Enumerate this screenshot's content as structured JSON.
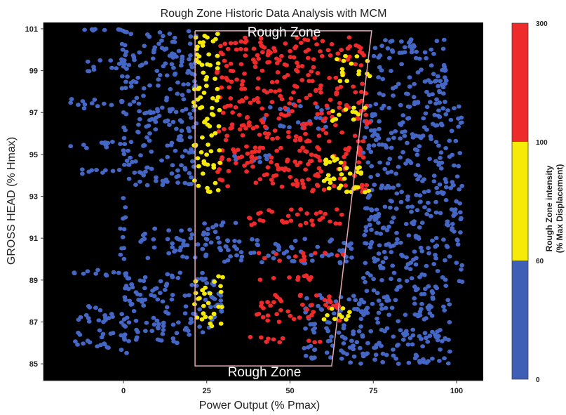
{
  "chart_data": {
    "type": "scatter",
    "title": "Rough Zone Historic Data Analysis with MCM",
    "xlabel": "Power Output (% Pmax)",
    "ylabel": "GROSS HEAD (% Hmax)",
    "xlim": [
      -24,
      108
    ],
    "ylim": [
      84.2,
      101.3
    ],
    "x_ticks": [
      0,
      25,
      50,
      75,
      100
    ],
    "y_ticks": [
      85,
      87,
      89,
      91,
      93,
      95,
      97,
      99,
      101
    ],
    "plot_background": "#000000",
    "grid": false,
    "legend": "none",
    "annotations": [
      {
        "text": "Rough Zone",
        "position": "top"
      },
      {
        "text": "Rough Zone",
        "position": "bottom"
      }
    ],
    "rough_zone_boundary": {
      "color": "#e7a8b4",
      "points": [
        [
          21.5,
          100.9
        ],
        [
          74.5,
          100.9
        ],
        [
          62.5,
          84.9
        ],
        [
          21.5,
          84.9
        ]
      ]
    },
    "colorbar": {
      "label_line1": "Rough Zone intensity",
      "label_line2": "(% Max Displacement)",
      "bands": [
        {
          "from": 0,
          "to": 60,
          "color": "#3f5fb6"
        },
        {
          "from": 60,
          "to": 100,
          "color": "#f6ea07"
        },
        {
          "from": 100,
          "to": 300,
          "color": "#ee2a2a"
        }
      ],
      "tick_labels": [
        "0",
        "60",
        "100",
        "300"
      ]
    },
    "series": [
      {
        "color": "#4466c4",
        "clusters": [
          {
            "x": [
              -16,
              -2
            ],
            "y": [
              85.6,
              86.6
            ]
          },
          {
            "x": [
              -18,
              0
            ],
            "y": [
              87.0,
              87.8
            ]
          },
          {
            "x": [
              -15,
              0
            ],
            "y": [
              89.1,
              89.5
            ]
          },
          {
            "x": [
              -14,
              5
            ],
            "y": [
              94.0,
              94.3
            ]
          },
          {
            "x": [
              -16,
              0
            ],
            "y": [
              95.3,
              95.6
            ]
          },
          {
            "x": [
              -18,
              0
            ],
            "y": [
              97.2,
              97.7
            ]
          },
          {
            "x": [
              -12,
              2
            ],
            "y": [
              98.9,
              99.5
            ]
          },
          {
            "x": [
              -14,
              4
            ],
            "y": [
              100.9,
              101.0
            ]
          },
          {
            "x": [
              -1,
              1
            ],
            "y": [
              85.0,
              101.0
            ]
          },
          {
            "x": [
              0,
              22
            ],
            "y": [
              93.5,
              100.9
            ]
          },
          {
            "x": [
              0,
              22
            ],
            "y": [
              86.0,
              89.5
            ]
          },
          {
            "x": [
              5,
              26
            ],
            "y": [
              90.0,
              91.5
            ]
          },
          {
            "x": [
              22,
              30
            ],
            "y": [
              86.5,
              89.5
            ]
          },
          {
            "x": [
              24,
              34
            ],
            "y": [
              90.5,
              91.8
            ]
          },
          {
            "x": [
              28,
              70
            ],
            "y": [
              89.8,
              91.0
            ]
          },
          {
            "x": [
              54,
              72
            ],
            "y": [
              85.2,
              88.3
            ]
          },
          {
            "x": [
              68,
              98
            ],
            "y": [
              85.0,
              88.5
            ]
          },
          {
            "x": [
              72,
              102
            ],
            "y": [
              88.5,
              93.0
            ]
          },
          {
            "x": [
              72,
              102
            ],
            "y": [
              93.0,
              97.5
            ]
          },
          {
            "x": [
              75,
              97
            ],
            "y": [
              97.5,
              100.5
            ]
          },
          {
            "x": [
              40,
              62
            ],
            "y": [
              96.2,
              96.8
            ]
          },
          {
            "x": [
              33,
              45
            ],
            "y": [
              94.6,
              95.0
            ]
          },
          {
            "x": [
              42,
              62
            ],
            "y": [
              97.0,
              97.4
            ]
          }
        ]
      },
      {
        "color": "#ee2a2a",
        "clusters": [
          {
            "x": [
              28,
              73
            ],
            "y": [
              93.2,
              95.4
            ]
          },
          {
            "x": [
              28,
              74
            ],
            "y": [
              95.6,
              100.6
            ]
          },
          {
            "x": [
              35,
              67
            ],
            "y": [
              91.6,
              92.4
            ]
          },
          {
            "x": [
              38,
              66
            ],
            "y": [
              89.9,
              90.3
            ]
          },
          {
            "x": [
              40,
              65
            ],
            "y": [
              87.0,
              88.3
            ]
          },
          {
            "x": [
              35,
              60
            ],
            "y": [
              86.0,
              86.3
            ]
          },
          {
            "x": [
              40,
              58
            ],
            "y": [
              89.0,
              89.3
            ]
          }
        ]
      },
      {
        "color": "#f6ea07",
        "clusters": [
          {
            "x": [
              21,
              29
            ],
            "y": [
              93.0,
              100.8
            ]
          },
          {
            "x": [
              21,
              30
            ],
            "y": [
              86.8,
              89.3
            ]
          },
          {
            "x": [
              60,
              74
            ],
            "y": [
              93.0,
              95.0
            ]
          },
          {
            "x": [
              62,
              74
            ],
            "y": [
              96.5,
              97.3
            ]
          },
          {
            "x": [
              64,
              74
            ],
            "y": [
              98.5,
              99.7
            ]
          },
          {
            "x": [
              60,
              68
            ],
            "y": [
              87.1,
              87.8
            ]
          }
        ]
      }
    ]
  }
}
